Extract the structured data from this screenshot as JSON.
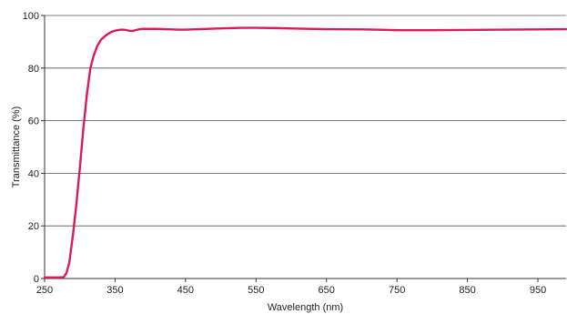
{
  "chart_data": {
    "type": "line",
    "title": "",
    "xlabel": "Wavelength (nm)",
    "ylabel": "Transmittance (%)",
    "xlim": [
      250,
      990
    ],
    "ylim": [
      0,
      100
    ],
    "x_ticks": [
      250,
      350,
      450,
      550,
      650,
      750,
      850,
      950
    ],
    "y_ticks": [
      0,
      20,
      40,
      60,
      80,
      100
    ],
    "grid": "horizontal",
    "legend": "none",
    "line_color": "#d81b60",
    "series": [
      {
        "x": [
          250,
          270,
          277,
          281,
          285,
          290,
          295,
          300,
          305,
          310,
          315,
          320,
          325,
          330,
          335,
          340,
          345,
          350,
          355,
          360,
          365,
          370,
          375,
          380,
          385,
          390,
          400,
          410,
          420,
          430,
          440,
          450,
          470,
          500,
          530,
          550,
          580,
          610,
          650,
          700,
          720,
          750,
          780,
          800,
          850,
          900,
          950,
          990
        ],
        "y": [
          0.4,
          0.4,
          0.5,
          2,
          6,
          16,
          28,
          42,
          57,
          70,
          80,
          85,
          88.5,
          90.8,
          92,
          93,
          93.8,
          94.2,
          94.5,
          94.6,
          94.5,
          94.2,
          94.1,
          94.5,
          94.8,
          94.9,
          94.9,
          94.9,
          94.8,
          94.7,
          94.6,
          94.6,
          94.8,
          95.1,
          95.3,
          95.3,
          95.2,
          95.0,
          94.8,
          94.7,
          94.6,
          94.4,
          94.4,
          94.4,
          94.5,
          94.6,
          94.7,
          94.8
        ]
      }
    ]
  }
}
